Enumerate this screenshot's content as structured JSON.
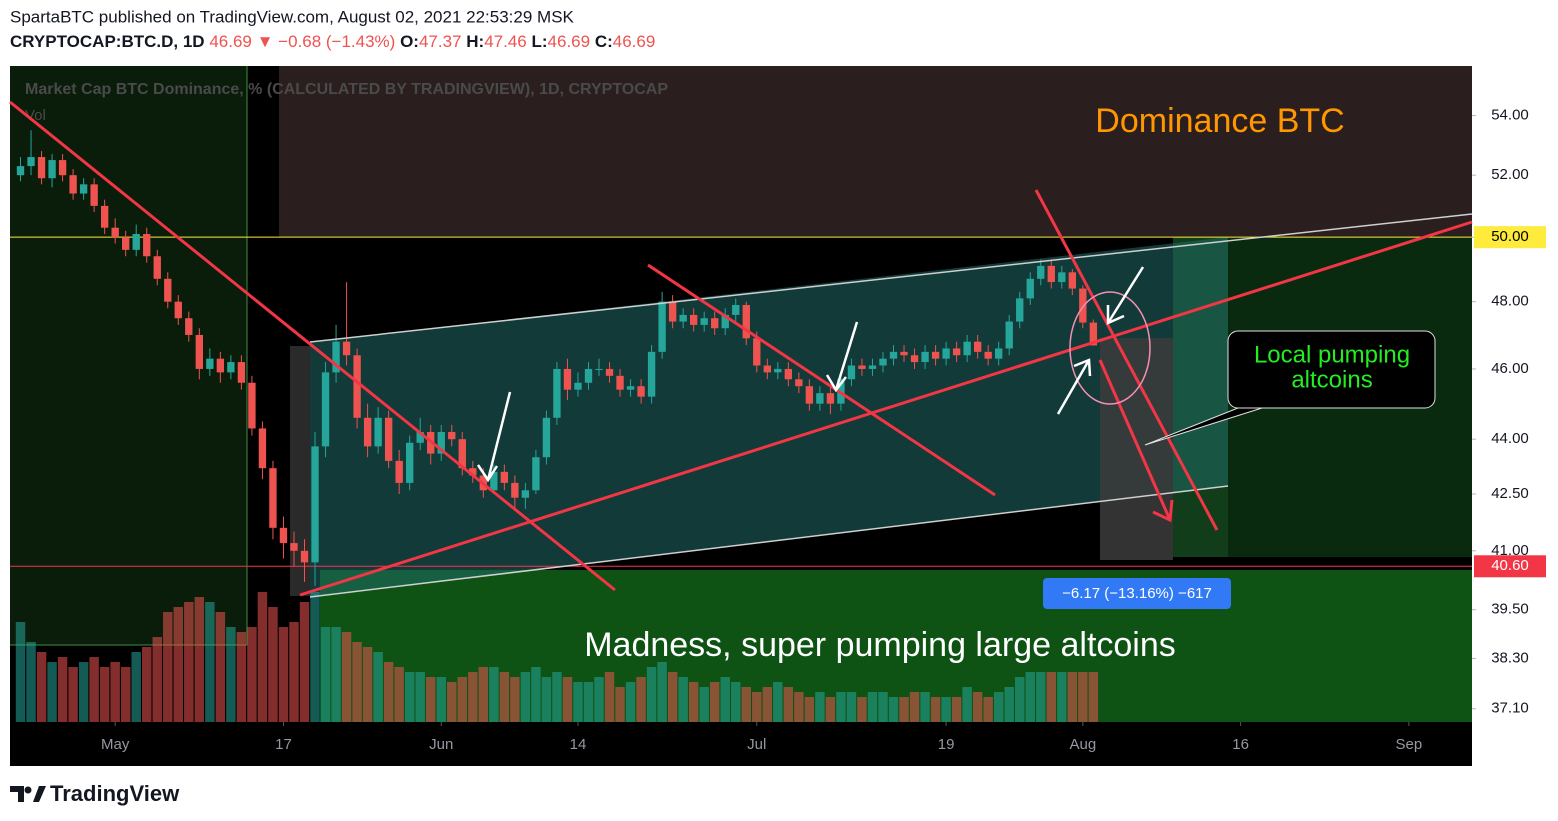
{
  "header": {
    "publisher": "SpartaBTC published on TradingView.com, August 02, 2021 22:53:29 MSK",
    "legend": {
      "symbol": "CRYPTOCAP:BTC.D, 1D",
      "last": "46.69",
      "change": "▼ −0.68 (−1.43%)",
      "o_label": "O:",
      "o": "47.37",
      "h_label": "H:",
      "h": "47.46",
      "l_label": "L:",
      "l": "46.69",
      "c_label": "C:",
      "c": "46.69"
    }
  },
  "footer": {
    "brand": "TradingView"
  },
  "chart_data": {
    "type": "candlestick",
    "title": "Market Cap BTC Dominance, % (CALCULATED BY TRADINGVIEW), 1D, CRYPTOCAP",
    "volume_label": "Vol",
    "annotations": {
      "dominance": "Dominance BTC",
      "local_1": "Local pumping",
      "local_2": "altcoins",
      "madness": "Madness, super pumping large altcoins",
      "measure": "−6.17 (−13.16%) −617"
    },
    "up_color": "#26a69a",
    "down_color": "#ef5350",
    "log_scale": true,
    "grid": false,
    "ylim": [
      36.79,
      55.72
    ],
    "yticks": [
      {
        "value": 54,
        "label": "54.00"
      },
      {
        "value": 52,
        "label": "52.00"
      },
      {
        "value": 50,
        "label": "50.00"
      },
      {
        "value": 48,
        "label": "48.00"
      },
      {
        "value": 46,
        "label": "46.00"
      },
      {
        "value": 44,
        "label": "44.00"
      },
      {
        "value": 42.5,
        "label": "42.50"
      },
      {
        "value": 41,
        "label": "41.00"
      },
      {
        "value": 39.5,
        "label": "39.50"
      },
      {
        "value": 38.3,
        "label": "38.30"
      },
      {
        "value": 37.1,
        "label": "37.10"
      }
    ],
    "xlim": [
      "2021-04-21",
      "2021-09-07"
    ],
    "xticks": [
      {
        "value": "2021-05-01",
        "label": "May"
      },
      {
        "value": "2021-05-17",
        "label": "17"
      },
      {
        "value": "2021-06-01",
        "label": "Jun"
      },
      {
        "value": "2021-06-14",
        "label": "14"
      },
      {
        "value": "2021-07-01",
        "label": "Jul"
      },
      {
        "value": "2021-07-19",
        "label": "19"
      },
      {
        "value": "2021-08-01",
        "label": "Aug"
      },
      {
        "value": "2021-08-16",
        "label": "16"
      },
      {
        "value": "2021-09-01",
        "label": "Sep"
      }
    ],
    "levels": [
      {
        "value": 50,
        "label": "50.00",
        "color": "#ffeb3b",
        "text_color": "#000000"
      },
      {
        "value": 40.6,
        "label": "40.60",
        "color": "#f23645",
        "text_color": "#ffffff"
      }
    ],
    "x": [
      "2021-04-22",
      "2021-04-23",
      "2021-04-24",
      "2021-04-25",
      "2021-04-26",
      "2021-04-27",
      "2021-04-28",
      "2021-04-29",
      "2021-04-30",
      "2021-05-01",
      "2021-05-02",
      "2021-05-03",
      "2021-05-04",
      "2021-05-05",
      "2021-05-06",
      "2021-05-07",
      "2021-05-08",
      "2021-05-09",
      "2021-05-10",
      "2021-05-11",
      "2021-05-12",
      "2021-05-13",
      "2021-05-14",
      "2021-05-15",
      "2021-05-16",
      "2021-05-17",
      "2021-05-18",
      "2021-05-19",
      "2021-05-20",
      "2021-05-21",
      "2021-05-22",
      "2021-05-23",
      "2021-05-24",
      "2021-05-25",
      "2021-05-26",
      "2021-05-27",
      "2021-05-28",
      "2021-05-29",
      "2021-05-30",
      "2021-05-31",
      "2021-06-01",
      "2021-06-02",
      "2021-06-03",
      "2021-06-04",
      "2021-06-05",
      "2021-06-06",
      "2021-06-07",
      "2021-06-08",
      "2021-06-09",
      "2021-06-10",
      "2021-06-11",
      "2021-06-12",
      "2021-06-13",
      "2021-06-14",
      "2021-06-15",
      "2021-06-16",
      "2021-06-17",
      "2021-06-18",
      "2021-06-19",
      "2021-06-20",
      "2021-06-21",
      "2021-06-22",
      "2021-06-23",
      "2021-06-24",
      "2021-06-25",
      "2021-06-26",
      "2021-06-27",
      "2021-06-28",
      "2021-06-29",
      "2021-06-30",
      "2021-07-01",
      "2021-07-02",
      "2021-07-03",
      "2021-07-04",
      "2021-07-05",
      "2021-07-06",
      "2021-07-07",
      "2021-07-08",
      "2021-07-09",
      "2021-07-10",
      "2021-07-11",
      "2021-07-12",
      "2021-07-13",
      "2021-07-14",
      "2021-07-15",
      "2021-07-16",
      "2021-07-17",
      "2021-07-18",
      "2021-07-19",
      "2021-07-20",
      "2021-07-21",
      "2021-07-22",
      "2021-07-23",
      "2021-07-24",
      "2021-07-25",
      "2021-07-26",
      "2021-07-27",
      "2021-07-28",
      "2021-07-29",
      "2021-07-30",
      "2021-07-31",
      "2021-08-01",
      "2021-08-02"
    ],
    "open": [
      52.0,
      52.3,
      52.6,
      51.9,
      52.5,
      52.0,
      51.4,
      51.7,
      51.0,
      50.3,
      50.0,
      49.6,
      50.1,
      49.4,
      48.7,
      48.0,
      47.5,
      47.0,
      46.0,
      46.3,
      45.9,
      46.2,
      45.6,
      44.3,
      43.2,
      41.6,
      41.2,
      41.0,
      40.7,
      43.8,
      45.9,
      46.8,
      46.4,
      44.6,
      43.8,
      44.6,
      43.4,
      42.8,
      43.9,
      44.2,
      43.6,
      44.2,
      44.0,
      43.2,
      43.0,
      42.6,
      43.1,
      42.8,
      42.4,
      42.6,
      43.5,
      44.6,
      46.0,
      45.4,
      45.6,
      46.0,
      46.0,
      45.8,
      45.4,
      45.5,
      45.2,
      46.5,
      48.0,
      47.4,
      47.6,
      47.3,
      47.5,
      47.2,
      47.6,
      47.9,
      46.9,
      46.1,
      45.9,
      46.0,
      45.7,
      45.5,
      45.0,
      45.3,
      45.0,
      45.7,
      46.1,
      46.0,
      46.1,
      46.3,
      46.5,
      46.4,
      46.2,
      46.5,
      46.3,
      46.6,
      46.4,
      46.8,
      46.5,
      46.3,
      46.6,
      47.4,
      48.1,
      48.7,
      49.1,
      48.6,
      48.9,
      48.4,
      47.37
    ],
    "high": [
      52.6,
      53.5,
      52.8,
      52.7,
      52.7,
      52.2,
      51.9,
      51.9,
      51.2,
      50.6,
      50.2,
      50.4,
      50.3,
      49.6,
      48.9,
      48.2,
      47.7,
      47.2,
      46.6,
      46.5,
      46.4,
      46.4,
      45.8,
      44.5,
      43.4,
      41.9,
      41.5,
      41.3,
      44.2,
      46.2,
      47.3,
      48.6,
      46.6,
      45.0,
      44.9,
      44.8,
      43.7,
      44.1,
      44.6,
      44.4,
      44.4,
      44.4,
      44.2,
      43.4,
      43.2,
      43.3,
      43.3,
      43.0,
      42.8,
      43.7,
      44.8,
      46.2,
      46.3,
      45.9,
      46.2,
      46.3,
      46.2,
      46.0,
      45.7,
      45.7,
      46.7,
      48.3,
      48.2,
      47.8,
      47.8,
      47.7,
      47.7,
      47.8,
      48.1,
      48.0,
      47.1,
      46.3,
      46.2,
      46.2,
      45.9,
      45.7,
      45.5,
      45.5,
      45.9,
      46.3,
      46.3,
      46.3,
      46.5,
      46.7,
      46.7,
      46.6,
      46.7,
      46.7,
      46.8,
      46.8,
      47.0,
      47.0,
      46.7,
      46.8,
      47.6,
      48.3,
      48.9,
      49.3,
      49.3,
      49.1,
      49.0,
      48.5,
      47.46
    ],
    "low": [
      51.8,
      52.0,
      51.7,
      51.6,
      51.8,
      51.2,
      51.2,
      50.8,
      50.1,
      49.8,
      49.4,
      49.4,
      49.2,
      48.5,
      47.8,
      47.3,
      46.8,
      45.7,
      45.8,
      45.6,
      45.7,
      45.4,
      44.1,
      42.9,
      41.3,
      40.8,
      40.6,
      40.2,
      40.1,
      43.5,
      45.6,
      46.1,
      44.3,
      43.5,
      43.6,
      43.2,
      42.5,
      42.6,
      43.7,
      43.3,
      43.4,
      43.8,
      43.0,
      42.8,
      42.4,
      42.5,
      42.6,
      42.1,
      42.1,
      42.5,
      43.3,
      44.4,
      45.1,
      45.2,
      45.4,
      45.8,
      45.6,
      45.2,
      45.2,
      45.0,
      45.0,
      46.3,
      47.2,
      47.2,
      47.1,
      47.1,
      47.0,
      47.0,
      47.4,
      46.7,
      45.9,
      45.7,
      45.7,
      45.5,
      45.3,
      44.8,
      44.8,
      44.7,
      44.8,
      45.5,
      45.8,
      45.8,
      45.9,
      46.1,
      46.2,
      46.0,
      46.0,
      46.1,
      46.1,
      46.2,
      46.2,
      46.3,
      46.1,
      46.1,
      46.4,
      47.2,
      47.9,
      48.5,
      48.4,
      48.4,
      48.2,
      47.2,
      46.69
    ],
    "close": [
      52.3,
      52.6,
      51.9,
      52.5,
      52.0,
      51.4,
      51.7,
      51.0,
      50.3,
      50.0,
      49.6,
      50.1,
      49.4,
      48.7,
      48.0,
      47.5,
      47.0,
      46.0,
      46.3,
      45.9,
      46.2,
      45.6,
      44.3,
      43.2,
      41.6,
      41.2,
      41.0,
      40.7,
      43.8,
      45.9,
      46.8,
      46.4,
      44.6,
      43.8,
      44.6,
      43.4,
      42.8,
      43.9,
      44.2,
      43.6,
      44.2,
      44.0,
      43.2,
      43.0,
      42.6,
      43.1,
      42.8,
      42.4,
      42.6,
      43.5,
      44.6,
      46.0,
      45.4,
      45.6,
      46.0,
      46.0,
      45.8,
      45.4,
      45.5,
      45.2,
      46.5,
      48.0,
      47.4,
      47.6,
      47.3,
      47.5,
      47.2,
      47.6,
      47.9,
      46.9,
      46.1,
      45.9,
      46.0,
      45.7,
      45.5,
      45.0,
      45.3,
      45.0,
      45.7,
      46.1,
      46.0,
      46.1,
      46.3,
      46.5,
      46.4,
      46.2,
      46.5,
      46.3,
      46.6,
      46.4,
      46.8,
      46.5,
      46.3,
      46.6,
      47.4,
      48.1,
      48.7,
      49.1,
      48.6,
      48.9,
      48.4,
      47.37,
      46.69
    ],
    "volume": [
      100,
      80,
      70,
      60,
      65,
      55,
      60,
      65,
      55,
      60,
      55,
      70,
      75,
      85,
      110,
      115,
      120,
      125,
      120,
      110,
      95,
      90,
      95,
      130,
      115,
      95,
      100,
      120,
      130,
      95,
      95,
      90,
      80,
      75,
      70,
      60,
      55,
      50,
      50,
      45,
      45,
      40,
      45,
      50,
      55,
      55,
      50,
      45,
      50,
      55,
      45,
      50,
      45,
      40,
      40,
      45,
      50,
      35,
      40,
      45,
      55,
      60,
      50,
      45,
      40,
      35,
      40,
      45,
      40,
      35,
      30,
      35,
      40,
      35,
      30,
      25,
      30,
      25,
      30,
      30,
      25,
      30,
      30,
      25,
      25,
      30,
      30,
      25,
      25,
      25,
      35,
      30,
      25,
      30,
      35,
      45,
      50,
      50,
      50,
      50,
      50,
      50,
      50
    ]
  }
}
